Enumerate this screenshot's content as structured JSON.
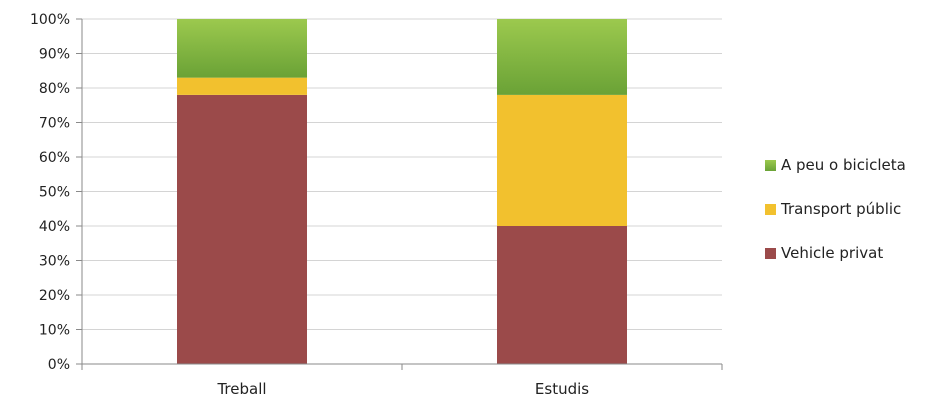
{
  "chart_data": {
    "type": "bar",
    "stacked": true,
    "percent": true,
    "categories": [
      "Treball",
      "Estudis"
    ],
    "series": [
      {
        "name": "Vehicle privat",
        "values": [
          78,
          40
        ],
        "color": "#9b4a4a"
      },
      {
        "name": "Transport públic",
        "values": [
          5,
          38
        ],
        "color": "#f2c12e"
      },
      {
        "name": "A peu o bicicleta",
        "values": [
          17,
          22
        ],
        "color": "#8fc04a"
      }
    ],
    "yticks": [
      "0%",
      "10%",
      "20%",
      "30%",
      "40%",
      "50%",
      "60%",
      "70%",
      "80%",
      "90%",
      "100%"
    ],
    "ylim": [
      0,
      100
    ],
    "grid": true,
    "legend_position": "right",
    "legend_order": [
      "A peu o bicicleta",
      "Transport públic",
      "Vehicle privat"
    ]
  }
}
